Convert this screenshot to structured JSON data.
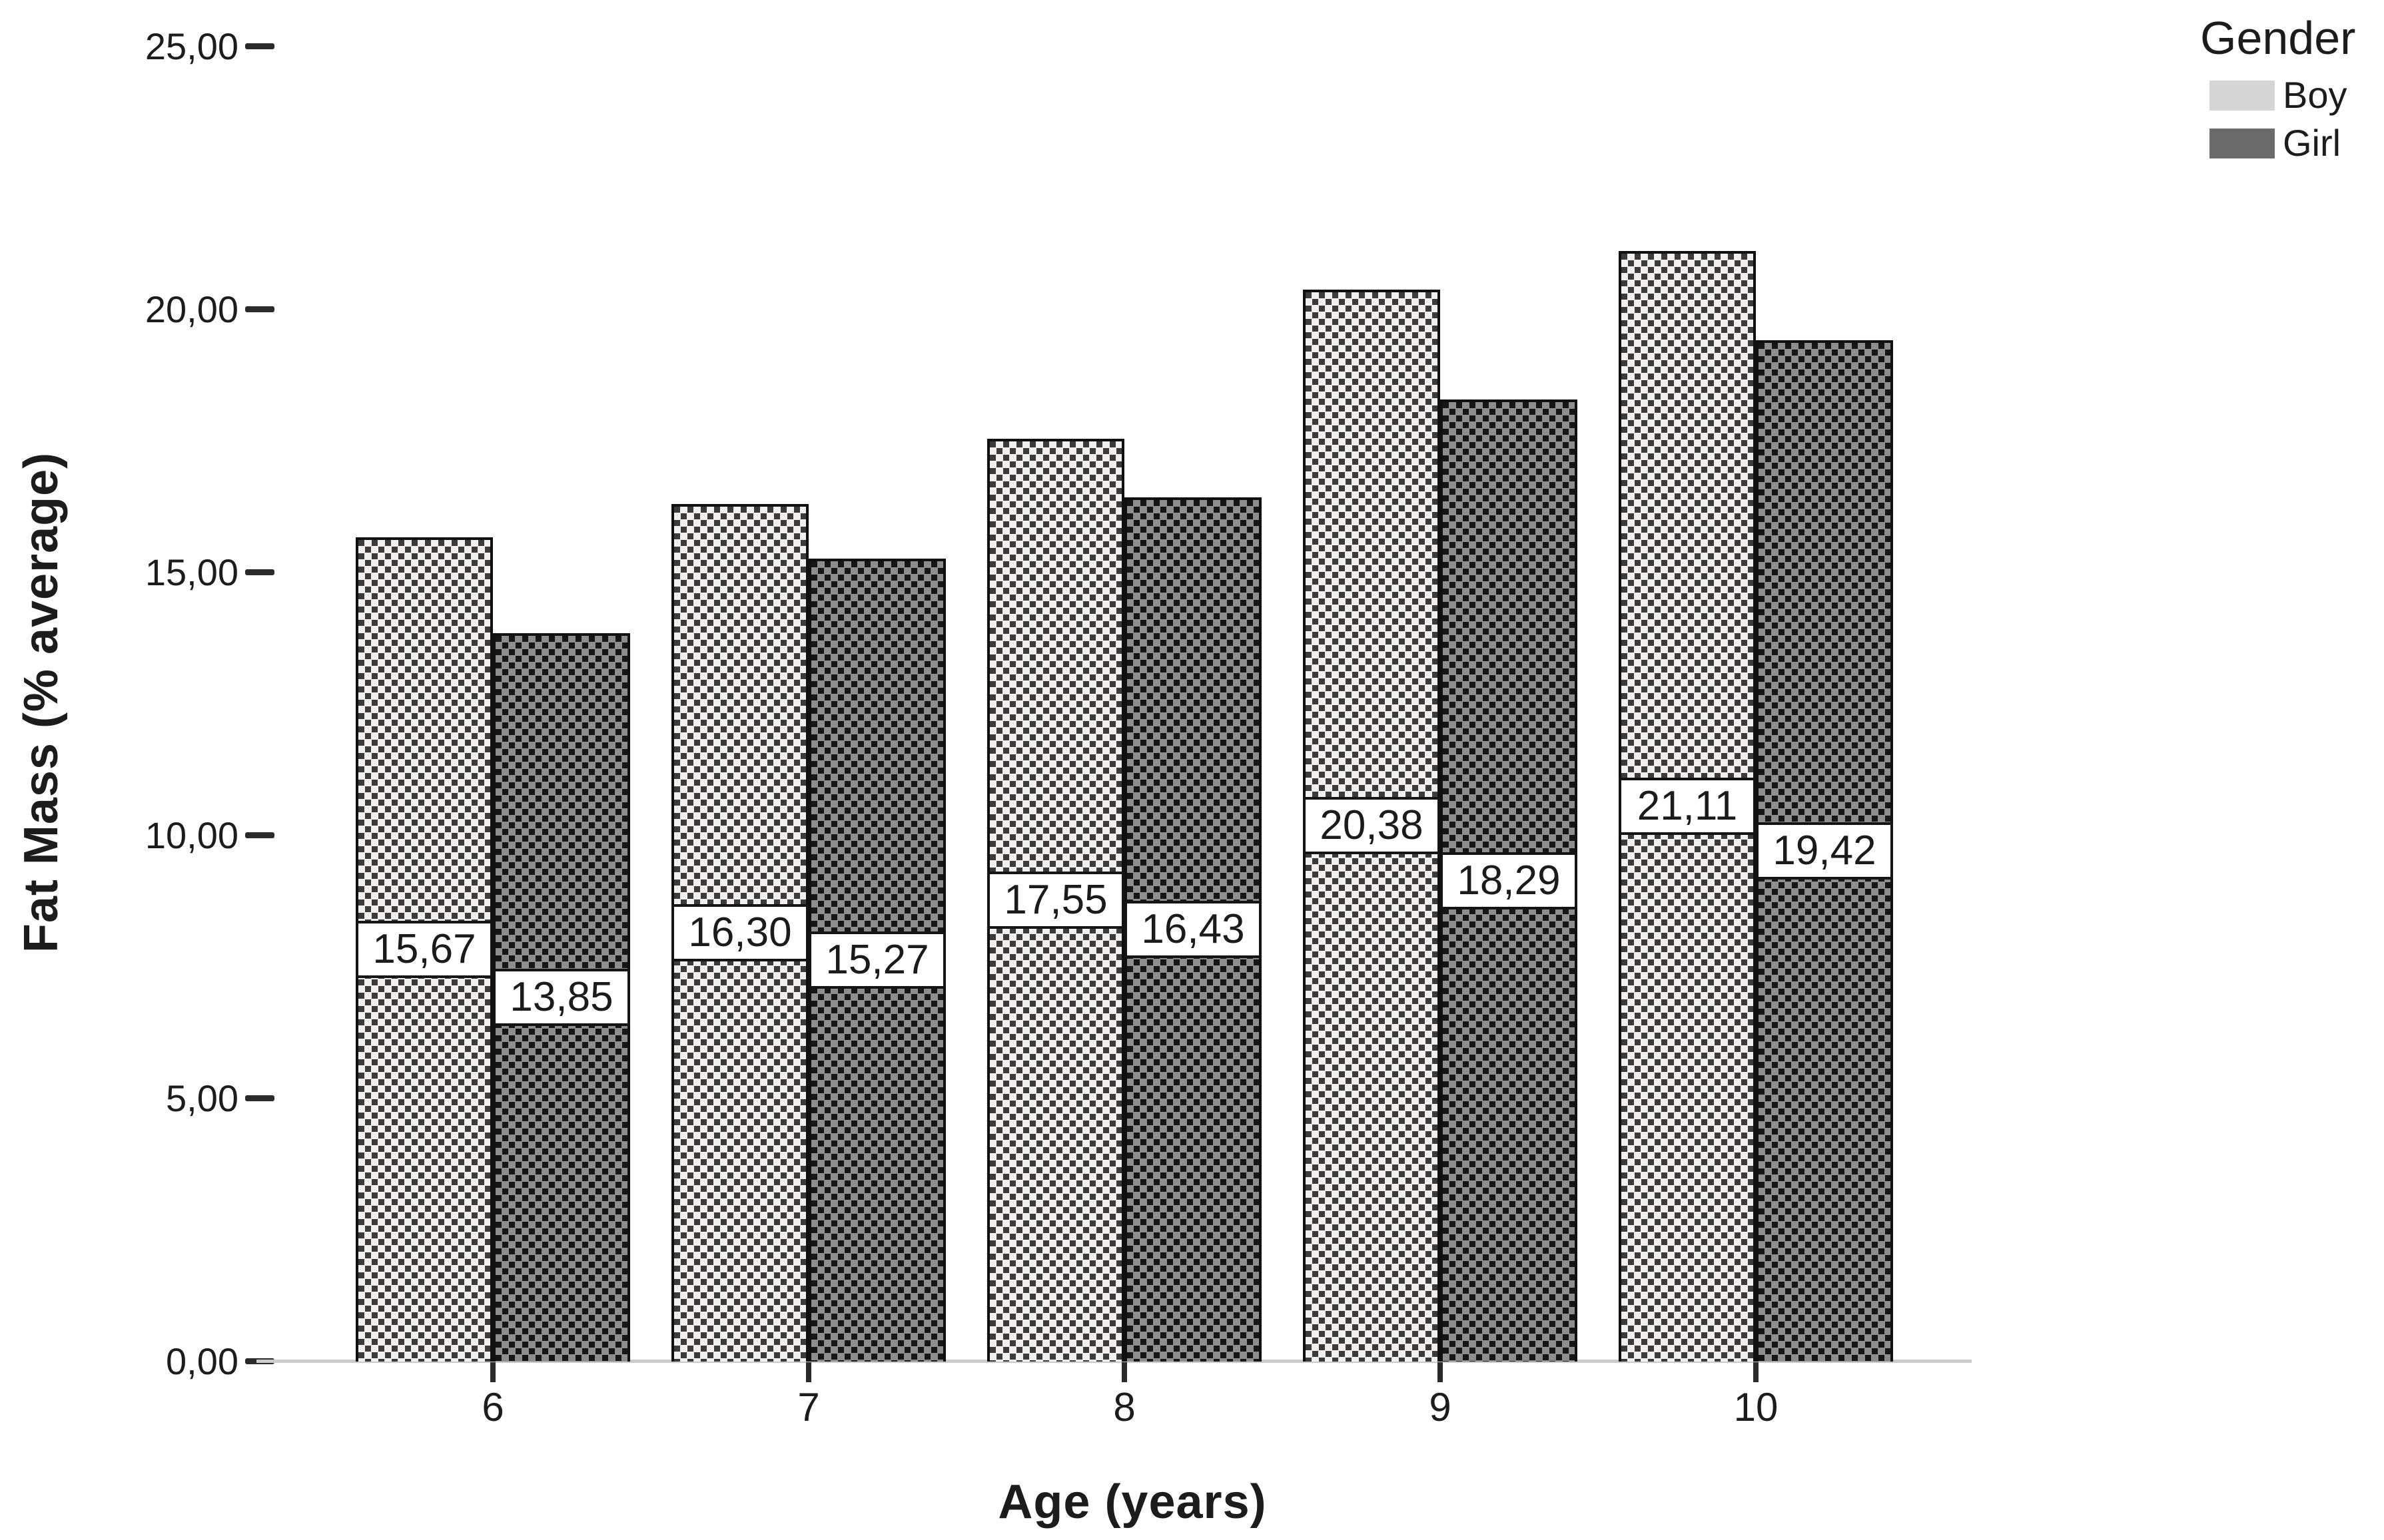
{
  "chart_data": {
    "type": "bar",
    "title": "",
    "categories": [
      "6",
      "7",
      "8",
      "9",
      "10"
    ],
    "series": [
      {
        "name": "Boy",
        "values": [
          15.67,
          16.3,
          17.55,
          20.38,
          21.11
        ],
        "value_labels": [
          "15,67",
          "16,30",
          "17,55",
          "20,38",
          "21,11"
        ],
        "legend_color": "#d5d5d5",
        "pattern": "light-checker"
      },
      {
        "name": "Girl",
        "values": [
          13.85,
          15.27,
          16.43,
          18.29,
          19.42
        ],
        "value_labels": [
          "13,85",
          "15,27",
          "16,43",
          "18,29",
          "19,42"
        ],
        "legend_color": "#6b6b6b",
        "pattern": "dark-checker"
      }
    ],
    "xlabel": "Age (years)",
    "ylabel": "Fat Mass (% average)",
    "ylim": [
      0,
      25
    ],
    "yticks": [
      {
        "value": 0,
        "label": "0,00"
      },
      {
        "value": 5,
        "label": "5,00"
      },
      {
        "value": 10,
        "label": "10,00"
      },
      {
        "value": 15,
        "label": "15,00"
      },
      {
        "value": 20,
        "label": "20,00"
      },
      {
        "value": 25,
        "label": "25,00"
      }
    ],
    "legend": {
      "title": "Gender",
      "position": "top-right"
    },
    "grid": false,
    "decimal_separator": ",",
    "value_label_position": "middle"
  }
}
